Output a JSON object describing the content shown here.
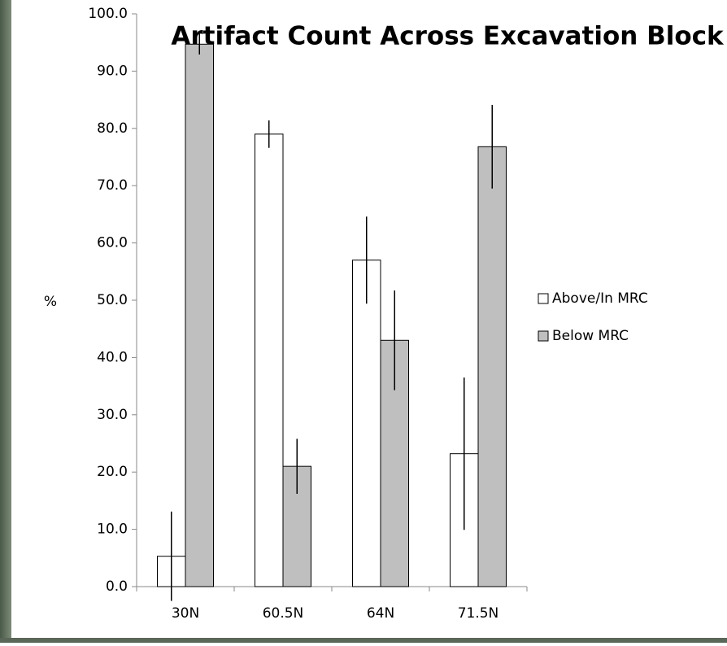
{
  "chart_data": {
    "type": "bar",
    "title": "Artifact Count Across Excavation Block",
    "y_label": "%",
    "categories": [
      "30N",
      "60.5N",
      "64N",
      "71.5N"
    ],
    "series": [
      {
        "name": "Above/In MRC",
        "color": "#ffffff",
        "values": [
          5.3,
          79.0,
          57.0,
          23.2
        ],
        "errors": [
          7.8,
          2.4,
          7.6,
          13.3
        ]
      },
      {
        "name": "Below MRC",
        "color": "#bfbfbf",
        "values": [
          94.7,
          21.0,
          43.0,
          76.8
        ],
        "errors": [
          1.8,
          4.8,
          8.7,
          7.3
        ]
      }
    ],
    "ylim": [
      0,
      100
    ],
    "yticks": [
      {
        "value": 0,
        "label": "0.0"
      },
      {
        "value": 10,
        "label": "10.0"
      },
      {
        "value": 20,
        "label": "20.0"
      },
      {
        "value": 30,
        "label": "30.0"
      },
      {
        "value": 40,
        "label": "40.0"
      },
      {
        "value": 50,
        "label": "50.0"
      },
      {
        "value": 60,
        "label": "60.0"
      },
      {
        "value": 70,
        "label": "70.0"
      },
      {
        "value": 80,
        "label": "80.0"
      },
      {
        "value": 90,
        "label": "90.0"
      },
      {
        "value": 100,
        "label": "100.0"
      }
    ],
    "grid": false,
    "legend": "right"
  }
}
